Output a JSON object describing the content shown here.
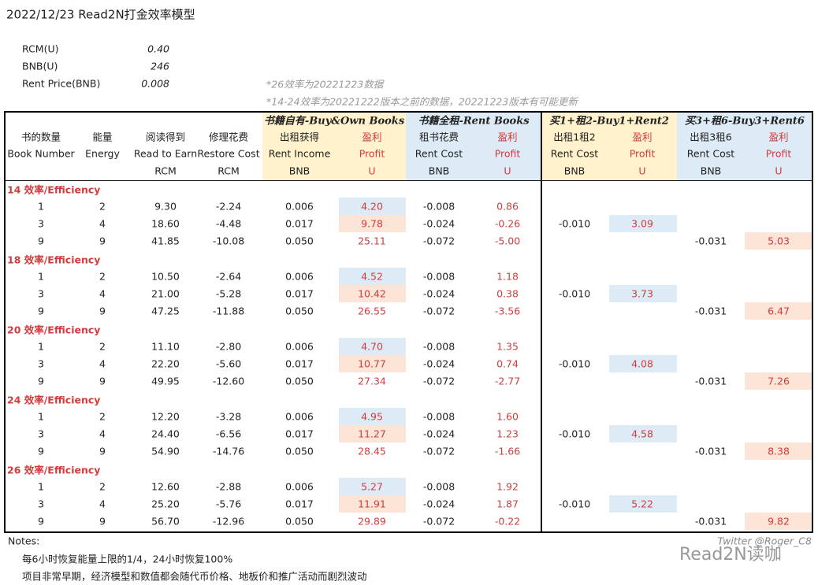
{
  "title": "2022/12/23  Read2N打金效率模型",
  "params": [
    [
      "RCM(U)",
      "0.40"
    ],
    [
      "BNB(U)",
      "246"
    ],
    [
      "Rent Price(BNB)",
      "0.008"
    ]
  ],
  "remarks": [
    "*26效率为20221223数据",
    "*14-24效率为20221222版本之前的数据，20221223版本有可能更新"
  ],
  "groups": [
    "书籍自有-Buy&Own Books",
    "书籍全租-Rent Books",
    "买1+租2-Buy1+Rent2",
    "买3+租6-Buy3+Rent6"
  ],
  "columns": [
    [
      "书的数量",
      "Book Number"
    ],
    [
      "能量",
      "Energy"
    ],
    [
      "阅读得到",
      "Read to Earn",
      "RCM"
    ],
    [
      "修理花费",
      "Restore Cost",
      "RCM"
    ],
    [
      "出租获得",
      "Rent Income",
      "BNB"
    ],
    [
      "盈利",
      "Profit",
      "U"
    ],
    [
      "租书花费",
      "Rent Cost",
      "BNB"
    ],
    [
      "盈利",
      "Profit",
      "U"
    ],
    [
      "出租1租2",
      "Rent Cost",
      "BNB"
    ],
    [
      "盈利",
      "Profit",
      "U"
    ],
    [
      "出租3租6",
      "Rent Cost",
      "BNB"
    ],
    [
      "盈利",
      "Profit",
      "U"
    ]
  ],
  "sections": [
    {
      "title": "14 效率/Efficiency",
      "rows": [
        {
          "values": [
            "1",
            "2",
            "9.30",
            "-2.24",
            "0.006",
            "4.20",
            "-0.008",
            "0.86"
          ]
        },
        {
          "values": [
            "3",
            "4",
            "18.60",
            "-4.48",
            "0.017",
            "9.78",
            "-0.024",
            "-0.26"
          ],
          "buy1_rent2": [
            "-0.010",
            "3.09"
          ]
        },
        {
          "values": [
            "9",
            "9",
            "41.85",
            "-10.08",
            "0.050",
            "25.11",
            "-0.072",
            "-5.00"
          ],
          "buy3_rent6": [
            "-0.031",
            "5.03"
          ]
        }
      ]
    },
    {
      "title": "18 效率/Efficiency",
      "rows": [
        {
          "values": [
            "1",
            "2",
            "10.50",
            "-2.64",
            "0.006",
            "4.52",
            "-0.008",
            "1.18"
          ]
        },
        {
          "values": [
            "3",
            "4",
            "21.00",
            "-5.28",
            "0.017",
            "10.42",
            "-0.024",
            "0.38"
          ],
          "buy1_rent2": [
            "-0.010",
            "3.73"
          ]
        },
        {
          "values": [
            "9",
            "9",
            "47.25",
            "-11.88",
            "0.050",
            "26.55",
            "-0.072",
            "-3.56"
          ],
          "buy3_rent6": [
            "-0.031",
            "6.47"
          ]
        }
      ]
    },
    {
      "title": "20 效率/Efficiency",
      "rows": [
        {
          "values": [
            "1",
            "2",
            "11.10",
            "-2.80",
            "0.006",
            "4.70",
            "-0.008",
            "1.35"
          ]
        },
        {
          "values": [
            "3",
            "4",
            "22.20",
            "-5.60",
            "0.017",
            "10.77",
            "-0.024",
            "0.74"
          ],
          "buy1_rent2": [
            "-0.010",
            "4.08"
          ]
        },
        {
          "values": [
            "9",
            "9",
            "49.95",
            "-12.60",
            "0.050",
            "27.34",
            "-0.072",
            "-2.77"
          ],
          "buy3_rent6": [
            "-0.031",
            "7.26"
          ]
        }
      ]
    },
    {
      "title": "24 效率/Efficiency",
      "rows": [
        {
          "values": [
            "1",
            "2",
            "12.20",
            "-3.28",
            "0.006",
            "4.95",
            "-0.008",
            "1.60"
          ]
        },
        {
          "values": [
            "3",
            "4",
            "24.40",
            "-6.56",
            "0.017",
            "11.27",
            "-0.024",
            "1.23"
          ],
          "buy1_rent2": [
            "-0.010",
            "4.58"
          ]
        },
        {
          "values": [
            "9",
            "9",
            "54.90",
            "-14.76",
            "0.050",
            "28.45",
            "-0.072",
            "-1.66"
          ],
          "buy3_rent6": [
            "-0.031",
            "8.38"
          ]
        }
      ]
    },
    {
      "title": "26 效率/Efficiency",
      "rows": [
        {
          "values": [
            "1",
            "2",
            "12.60",
            "-2.88",
            "0.006",
            "5.27",
            "-0.008",
            "1.92"
          ]
        },
        {
          "values": [
            "3",
            "4",
            "25.20",
            "-5.76",
            "0.017",
            "11.91",
            "-0.024",
            "1.87"
          ],
          "buy1_rent2": [
            "-0.010",
            "5.22"
          ]
        },
        {
          "values": [
            "9",
            "9",
            "56.70",
            "-12.96",
            "0.050",
            "29.89",
            "-0.072",
            "-0.22"
          ],
          "buy3_rent6": [
            "-0.031",
            "9.82"
          ]
        }
      ]
    }
  ],
  "notes": [
    "Notes:",
    "每6小时恢复能量上限的1/4，24小时恢复100%",
    "项目非常早期，经济模型和数值都会随代币价格、地板价和推广活动而剧烈波动"
  ],
  "watermark": {
    "credit": "Twitter @Roger_C8",
    "brand": "Read2N读咖"
  }
}
